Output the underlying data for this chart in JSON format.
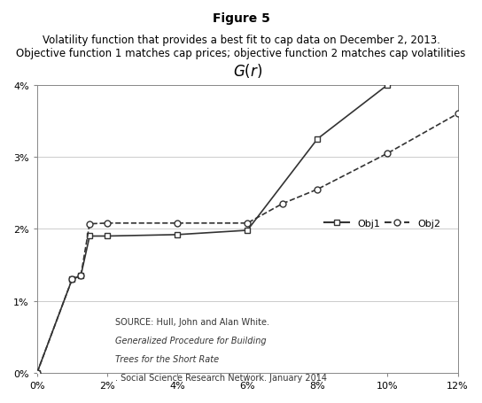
{
  "title_bold": "Figure 5",
  "title_sub": "Volatility function that provides a best fit to cap data on December 2, 2013.\nObjective function 1 matches cap prices; objective function 2 matches cap volatilities",
  "obj1_x": [
    0.0,
    0.01,
    0.0125,
    0.015,
    0.02,
    0.04,
    0.06,
    0.08,
    0.1
  ],
  "obj1_y": [
    0.0,
    0.013,
    0.0135,
    0.019,
    0.019,
    0.0192,
    0.0198,
    0.0325,
    0.04
  ],
  "obj2_x": [
    0.0,
    0.01,
    0.0125,
    0.015,
    0.02,
    0.04,
    0.06,
    0.07,
    0.08,
    0.1,
    0.12
  ],
  "obj2_y": [
    0.0,
    0.013,
    0.0135,
    0.0207,
    0.0208,
    0.0208,
    0.0208,
    0.0235,
    0.0255,
    0.0305,
    0.036
  ],
  "xlim": [
    0,
    0.12
  ],
  "ylim": [
    0,
    0.04
  ],
  "xticks": [
    0,
    0.02,
    0.04,
    0.06,
    0.08,
    0.1,
    0.12
  ],
  "yticks": [
    0,
    0.01,
    0.02,
    0.03,
    0.04
  ],
  "legend_obj1": "Obj1",
  "legend_obj2": "Obj2",
  "line_color": "#333333",
  "bg_color": "#ffffff",
  "grid_color": "#cccccc",
  "source_line1_normal": "SOURCE: Hull, John and Alan White. ",
  "source_line1_italic": "Generalized Procedure for Building",
  "source_line2_italic": "Trees for the Short Rate",
  "source_line2_normal": ". Social Science Research Network. January 2014"
}
